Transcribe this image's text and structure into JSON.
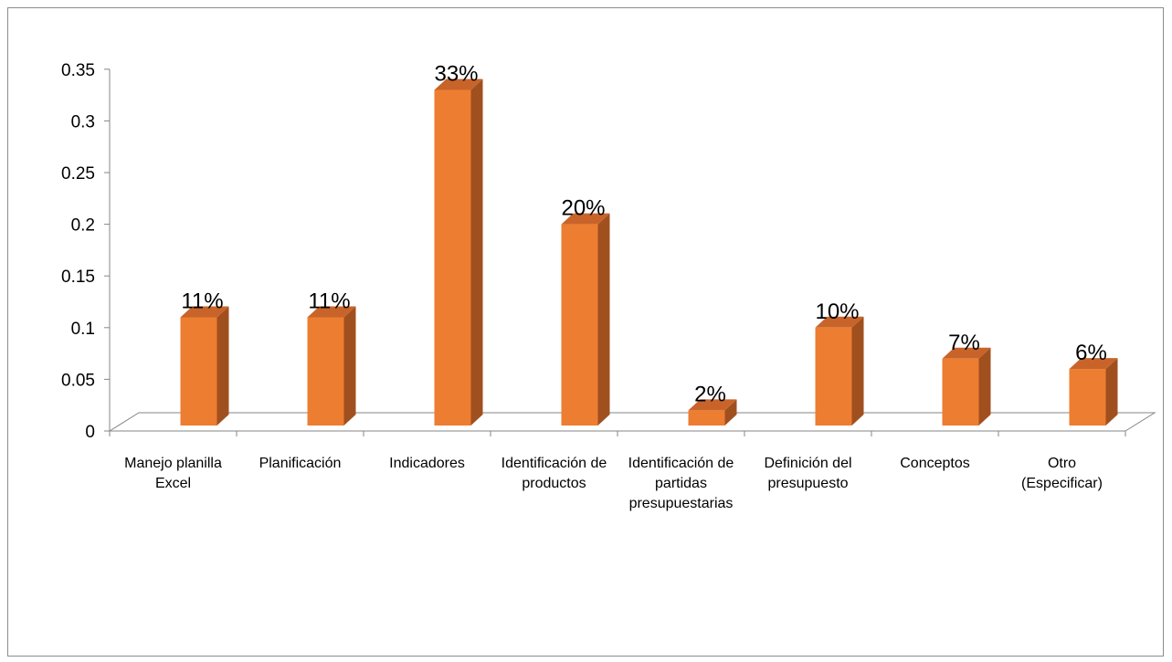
{
  "chart_data": {
    "type": "bar",
    "title": "",
    "xlabel": "",
    "ylabel": "",
    "categories": [
      [
        "Manejo planilla",
        "Excel"
      ],
      [
        "Planificación"
      ],
      [
        "Indicadores"
      ],
      [
        "Identificación de",
        "productos"
      ],
      [
        "Identificación de",
        "partidas",
        "presupuestarias"
      ],
      [
        "Definición del",
        "presupuesto"
      ],
      [
        "Conceptos"
      ],
      [
        "Otro",
        "(Especificar)"
      ]
    ],
    "values": [
      0.11,
      0.11,
      0.33,
      0.2,
      0.02,
      0.1,
      0.07,
      0.06
    ],
    "data_labels": [
      "11%",
      "11%",
      "33%",
      "20%",
      "2%",
      "10%",
      "7%",
      "6%"
    ],
    "y_ticks": [
      "0",
      "0.05",
      "0.1",
      "0.15",
      "0.2",
      "0.25",
      "0.3",
      "0.35"
    ],
    "ylim": [
      0,
      0.35
    ],
    "grid": false,
    "legend": "none",
    "colors": {
      "bar_front": "#ED7D31",
      "bar_side": "#A0501F",
      "bar_top": "#C8642A",
      "axis": "#868686"
    }
  }
}
